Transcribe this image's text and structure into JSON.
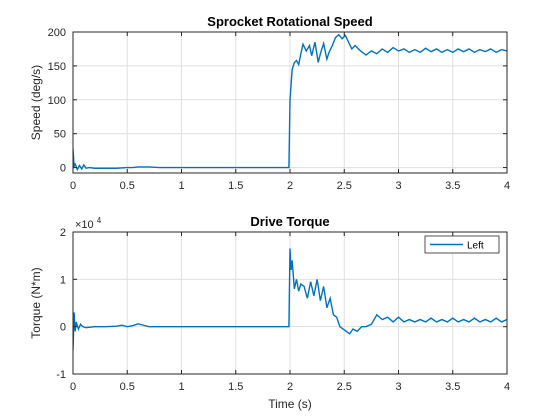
{
  "chart_data": [
    {
      "type": "line",
      "title": "Sprocket Rotational Speed",
      "xlabel": "",
      "ylabel": "Speed (deg/s)",
      "xlim": [
        0,
        4
      ],
      "ylim": [
        -8,
        200
      ],
      "xticks": [
        "0",
        "0.5",
        "1",
        "1.5",
        "2",
        "2.5",
        "3",
        "3.5",
        "4"
      ],
      "yticks": [
        "0",
        "50",
        "100",
        "150",
        "200"
      ],
      "grid": true,
      "color": "#0072BD",
      "series": [
        {
          "x": [
            0,
            0.01,
            0.02,
            0.04,
            0.06,
            0.08,
            0.1,
            0.12,
            0.15,
            0.2,
            0.3,
            0.4,
            0.5,
            0.55,
            0.6,
            0.7,
            0.8,
            0.9,
            1.0,
            1.2,
            1.5,
            1.8,
            1.99,
            2.0,
            2.02,
            2.04,
            2.06,
            2.08,
            2.1,
            2.12,
            2.15,
            2.18,
            2.2,
            2.23,
            2.26,
            2.28,
            2.31,
            2.34,
            2.36,
            2.39,
            2.42,
            2.45,
            2.48,
            2.51,
            2.54,
            2.57,
            2.6,
            2.65,
            2.7,
            2.75,
            2.8,
            2.85,
            2.9,
            2.95,
            3.0,
            3.05,
            3.1,
            3.15,
            3.2,
            3.25,
            3.3,
            3.35,
            3.4,
            3.45,
            3.5,
            3.55,
            3.6,
            3.65,
            3.7,
            3.75,
            3.8,
            3.85,
            3.9,
            3.95,
            4.0
          ],
          "y": [
            28,
            2,
            5,
            -3,
            3,
            -2,
            4,
            -1,
            0,
            -1,
            -1,
            -1,
            0,
            0,
            1,
            1,
            0,
            0,
            0,
            0,
            0,
            0,
            0,
            100,
            145,
            155,
            158,
            152,
            168,
            182,
            172,
            180,
            165,
            185,
            155,
            168,
            183,
            160,
            170,
            180,
            192,
            196,
            190,
            195,
            185,
            175,
            180,
            172,
            166,
            172,
            168,
            175,
            170,
            177,
            172,
            175,
            170,
            174,
            170,
            176,
            171,
            175,
            170,
            174,
            170,
            175,
            171,
            175,
            170,
            174,
            171,
            175,
            170,
            174,
            172
          ]
        }
      ]
    },
    {
      "type": "line",
      "title": "Drive Torque",
      "xlabel": "Time (s)",
      "ylabel": "Torque (N*m)",
      "exponent": "×10",
      "exponent_power": "4",
      "xlim": [
        0,
        4
      ],
      "ylim": [
        -1,
        2
      ],
      "xticks": [
        "0",
        "0.5",
        "1",
        "1.5",
        "2",
        "2.5",
        "3",
        "3.5",
        "4"
      ],
      "yticks": [
        "-1",
        "0",
        "1",
        "2"
      ],
      "grid": true,
      "legend": "top-right",
      "color": "#0072BD",
      "series": [
        {
          "name": "Left",
          "x": [
            0,
            0.01,
            0.02,
            0.03,
            0.05,
            0.07,
            0.09,
            0.12,
            0.2,
            0.3,
            0.4,
            0.45,
            0.5,
            0.55,
            0.6,
            0.65,
            0.7,
            0.8,
            1.0,
            1.5,
            1.99,
            2.0,
            2.01,
            2.02,
            2.04,
            2.06,
            2.08,
            2.1,
            2.13,
            2.16,
            2.19,
            2.22,
            2.25,
            2.28,
            2.31,
            2.34,
            2.37,
            2.4,
            2.43,
            2.46,
            2.49,
            2.52,
            2.55,
            2.58,
            2.62,
            2.66,
            2.7,
            2.75,
            2.8,
            2.85,
            2.9,
            2.95,
            3.0,
            3.05,
            3.1,
            3.15,
            3.2,
            3.25,
            3.3,
            3.35,
            3.4,
            3.45,
            3.5,
            3.55,
            3.6,
            3.65,
            3.7,
            3.75,
            3.8,
            3.85,
            3.9,
            3.95,
            4.0
          ],
          "y": [
            -0.5,
            0.3,
            -0.1,
            0.1,
            -0.05,
            0.05,
            0.0,
            -0.02,
            0.0,
            0.0,
            0.01,
            0.03,
            0.0,
            0.02,
            0.06,
            0.03,
            0.0,
            0.0,
            0.0,
            0.0,
            0.0,
            1.65,
            1.2,
            1.4,
            0.8,
            1.0,
            0.75,
            0.9,
            0.85,
            0.6,
            0.95,
            0.65,
            1.0,
            0.55,
            0.85,
            0.4,
            0.6,
            0.25,
            0.2,
            0.0,
            -0.05,
            -0.1,
            -0.15,
            -0.05,
            -0.1,
            0.0,
            0.0,
            0.05,
            0.25,
            0.15,
            0.2,
            0.1,
            0.2,
            0.1,
            0.15,
            0.1,
            0.15,
            0.1,
            0.18,
            0.1,
            0.15,
            0.1,
            0.18,
            0.1,
            0.15,
            0.1,
            0.18,
            0.1,
            0.15,
            0.1,
            0.18,
            0.1,
            0.15
          ]
        }
      ]
    }
  ]
}
